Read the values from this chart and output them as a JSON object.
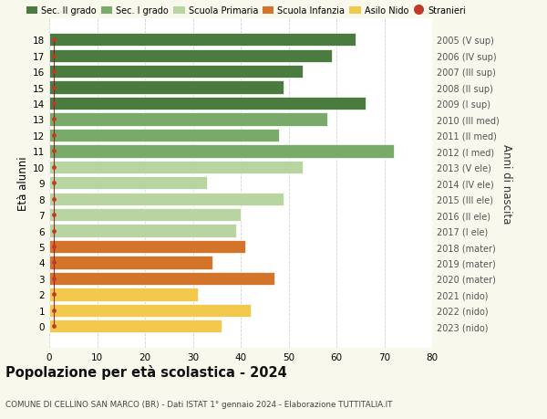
{
  "ages": [
    18,
    17,
    16,
    15,
    14,
    13,
    12,
    11,
    10,
    9,
    8,
    7,
    6,
    5,
    4,
    3,
    2,
    1,
    0
  ],
  "values": [
    64,
    59,
    53,
    49,
    66,
    58,
    48,
    72,
    53,
    33,
    49,
    40,
    39,
    41,
    34,
    47,
    31,
    42,
    36
  ],
  "right_labels": [
    "2005 (V sup)",
    "2006 (IV sup)",
    "2007 (III sup)",
    "2008 (II sup)",
    "2009 (I sup)",
    "2010 (III med)",
    "2011 (II med)",
    "2012 (I med)",
    "2013 (V ele)",
    "2014 (IV ele)",
    "2015 (III ele)",
    "2016 (II ele)",
    "2017 (I ele)",
    "2018 (mater)",
    "2019 (mater)",
    "2020 (mater)",
    "2021 (nido)",
    "2022 (nido)",
    "2023 (nido)"
  ],
  "bar_colors": [
    "#4a7c3f",
    "#4a7c3f",
    "#4a7c3f",
    "#4a7c3f",
    "#4a7c3f",
    "#7aaa6a",
    "#7aaa6a",
    "#7aaa6a",
    "#b8d4a0",
    "#b8d4a0",
    "#b8d4a0",
    "#b8d4a0",
    "#b8d4a0",
    "#d4732a",
    "#d4732a",
    "#d4732a",
    "#f2c94c",
    "#f2c94c",
    "#f2c94c"
  ],
  "legend_labels": [
    "Sec. II grado",
    "Sec. I grado",
    "Scuola Primaria",
    "Scuola Infanzia",
    "Asilo Nido",
    "Stranieri"
  ],
  "legend_colors": [
    "#4a7c3f",
    "#7aaa6a",
    "#b8d4a0",
    "#d4732a",
    "#f2c94c",
    "#c0392b"
  ],
  "title": "Popolazione per età scolastica - 2024",
  "subtitle": "COMUNE DI CELLINO SAN MARCO (BR) - Dati ISTAT 1° gennaio 2024 - Elaborazione TUTTITALIA.IT",
  "ylabel_left": "Età alunni",
  "ylabel_right": "Anni di nascita",
  "xlim": [
    0,
    80
  ],
  "xticks": [
    0,
    10,
    20,
    30,
    40,
    50,
    60,
    70,
    80
  ],
  "bg_color": "#f8f8ec",
  "plot_bg_color": "#ffffff",
  "grid_color": "#cccccc",
  "bar_height": 0.82,
  "stranieri_color": "#c0392b",
  "stranieri_line_color": "#8b1010"
}
